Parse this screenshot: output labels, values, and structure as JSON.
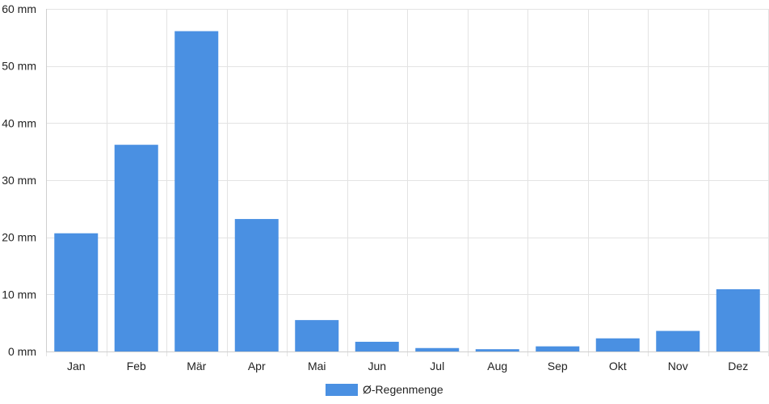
{
  "chart_data": {
    "type": "bar",
    "categories": [
      "Jan",
      "Feb",
      "Mär",
      "Apr",
      "Mai",
      "Jun",
      "Jul",
      "Aug",
      "Sep",
      "Okt",
      "Nov",
      "Dez"
    ],
    "series": [
      {
        "name": "Ø-Regenmenge",
        "values": [
          20.7,
          36.2,
          56.1,
          23.2,
          5.5,
          1.7,
          0.6,
          0.4,
          0.9,
          2.3,
          3.6,
          10.9
        ],
        "color": "#4a90e2"
      }
    ],
    "ylim": [
      0,
      60
    ],
    "yticks": [
      0,
      10,
      20,
      30,
      40,
      50,
      60
    ],
    "ytick_labels": [
      "0 mm",
      "10 mm",
      "20 mm",
      "30 mm",
      "40 mm",
      "50 mm",
      "60 mm"
    ],
    "grid": true,
    "legend_position": "bottom-center",
    "title": "",
    "xlabel": "",
    "ylabel": ""
  }
}
